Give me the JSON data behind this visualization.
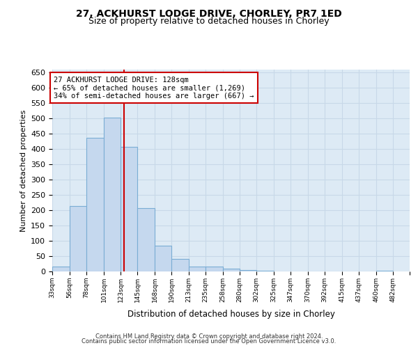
{
  "title1": "27, ACKHURST LODGE DRIVE, CHORLEY, PR7 1ED",
  "title2": "Size of property relative to detached houses in Chorley",
  "xlabel": "Distribution of detached houses by size in Chorley",
  "ylabel": "Number of detached properties",
  "bin_labels": [
    "33sqm",
    "56sqm",
    "78sqm",
    "101sqm",
    "123sqm",
    "145sqm",
    "168sqm",
    "190sqm",
    "213sqm",
    "235sqm",
    "258sqm",
    "280sqm",
    "302sqm",
    "325sqm",
    "347sqm",
    "370sqm",
    "392sqm",
    "415sqm",
    "437sqm",
    "460sqm",
    "482sqm"
  ],
  "bin_edges": [
    33,
    56,
    78,
    101,
    123,
    145,
    168,
    190,
    213,
    235,
    258,
    280,
    302,
    325,
    347,
    370,
    392,
    415,
    437,
    460,
    482
  ],
  "bar_heights": [
    17,
    213,
    437,
    503,
    408,
    207,
    85,
    40,
    17,
    15,
    10,
    5,
    2,
    1,
    1,
    1,
    0,
    0,
    0,
    2
  ],
  "bar_color": "#c5d8ee",
  "bar_edge_color": "#7aadd4",
  "bar_alpha": 1.0,
  "vline_x": 128,
  "vline_color": "#cc0000",
  "ylim": [
    0,
    660
  ],
  "yticks": [
    0,
    50,
    100,
    150,
    200,
    250,
    300,
    350,
    400,
    450,
    500,
    550,
    600,
    650
  ],
  "annotation_title": "27 ACKHURST LODGE DRIVE: 128sqm",
  "annotation_line1": "← 65% of detached houses are smaller (1,269)",
  "annotation_line2": "34% of semi-detached houses are larger (667) →",
  "annotation_box_color": "#ffffff",
  "annotation_box_edge": "#cc0000",
  "grid_color": "#c8d8e8",
  "background_color": "#ddeaf5",
  "footer1": "Contains HM Land Registry data © Crown copyright and database right 2024.",
  "footer2": "Contains public sector information licensed under the Open Government Licence v3.0.",
  "title1_fontsize": 10,
  "title2_fontsize": 9
}
